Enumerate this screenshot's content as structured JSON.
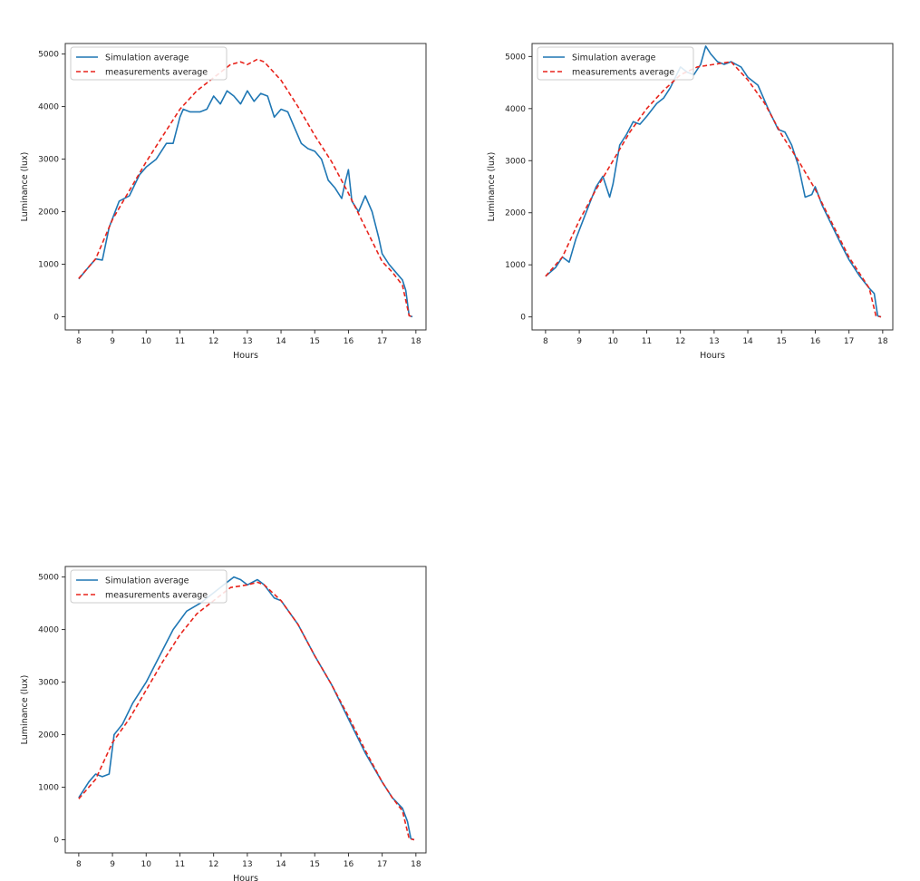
{
  "colors": {
    "simulation": "#1f77b4",
    "measurements": "#e8241c",
    "axes": "#333333"
  },
  "chart_data": [
    {
      "type": "line",
      "xlabel": "Hours",
      "ylabel": "Luminance (lux)",
      "xlim": [
        7.6,
        18.3
      ],
      "ylim": [
        -250,
        5200
      ],
      "xticks": [
        8,
        9,
        10,
        11,
        12,
        13,
        14,
        15,
        16,
        17,
        18
      ],
      "yticks": [
        0,
        1000,
        2000,
        3000,
        4000,
        5000
      ],
      "grid": false,
      "legend": "top-left",
      "series": [
        {
          "name": "Simulation average",
          "style": "solid",
          "x": [
            8,
            8.3,
            8.5,
            8.7,
            8.9,
            9.2,
            9.5,
            9.8,
            10,
            10.3,
            10.6,
            10.8,
            11,
            11.1,
            11.3,
            11.6,
            11.8,
            12,
            12.2,
            12.4,
            12.6,
            12.8,
            13,
            13.2,
            13.4,
            13.6,
            13.8,
            14,
            14.2,
            14.4,
            14.6,
            14.8,
            15,
            15.2,
            15.4,
            15.6,
            15.8,
            15.9,
            16,
            16.1,
            16.3,
            16.5,
            16.7,
            16.9,
            17,
            17.2,
            17.4,
            17.6,
            17.7,
            17.8,
            17.9
          ],
          "y": [
            720,
            950,
            1100,
            1080,
            1700,
            2200,
            2300,
            2700,
            2850,
            3000,
            3300,
            3300,
            3800,
            3950,
            3900,
            3900,
            3950,
            4200,
            4050,
            4300,
            4200,
            4050,
            4300,
            4100,
            4250,
            4200,
            3800,
            3950,
            3900,
            3600,
            3300,
            3200,
            3150,
            3000,
            2600,
            2450,
            2250,
            2550,
            2800,
            2200,
            2000,
            2300,
            2000,
            1500,
            1200,
            1000,
            850,
            700,
            500,
            20,
            0
          ]
        },
        {
          "name": "measurements average",
          "style": "dashed",
          "x": [
            8,
            8.5,
            9,
            9.5,
            10,
            10.5,
            11,
            11.5,
            12,
            12.5,
            12.8,
            13,
            13.3,
            13.5,
            14,
            14.5,
            15,
            15.5,
            16,
            16.5,
            17,
            17.3,
            17.6,
            17.8,
            17.9
          ],
          "y": [
            730,
            1100,
            1850,
            2400,
            2950,
            3450,
            3950,
            4300,
            4550,
            4800,
            4850,
            4800,
            4900,
            4850,
            4500,
            4000,
            3450,
            2950,
            2350,
            1700,
            1050,
            850,
            600,
            20,
            0
          ]
        }
      ]
    },
    {
      "type": "line",
      "xlabel": "Hours",
      "ylabel": "Luminance (lux)",
      "xlim": [
        7.6,
        18.3
      ],
      "ylim": [
        -250,
        5250
      ],
      "xticks": [
        8,
        9,
        10,
        11,
        12,
        13,
        14,
        15,
        16,
        17,
        18
      ],
      "yticks": [
        0,
        1000,
        2000,
        3000,
        4000,
        5000
      ],
      "grid": false,
      "legend": "top-left",
      "series": [
        {
          "name": "Simulation average",
          "style": "solid",
          "x": [
            8,
            8.3,
            8.5,
            8.7,
            8.9,
            9.2,
            9.5,
            9.7,
            9.9,
            10,
            10.2,
            10.4,
            10.6,
            10.8,
            11,
            11.3,
            11.5,
            11.7,
            12,
            12.2,
            12.4,
            12.6,
            12.75,
            12.9,
            13.1,
            13.3,
            13.5,
            13.8,
            14,
            14.3,
            14.6,
            14.9,
            15.1,
            15.3,
            15.5,
            15.7,
            15.9,
            16,
            16.2,
            16.5,
            16.8,
            17,
            17.3,
            17.6,
            17.75,
            17.85,
            17.95
          ],
          "y": [
            780,
            950,
            1150,
            1050,
            1500,
            2000,
            2500,
            2700,
            2300,
            2550,
            3300,
            3500,
            3750,
            3700,
            3850,
            4100,
            4200,
            4400,
            4800,
            4700,
            4650,
            4850,
            5200,
            5050,
            4900,
            4850,
            4900,
            4800,
            4600,
            4450,
            4000,
            3600,
            3550,
            3300,
            2900,
            2300,
            2350,
            2500,
            2150,
            1750,
            1350,
            1100,
            800,
            550,
            450,
            20,
            0
          ]
        },
        {
          "name": "measurements average",
          "style": "dashed",
          "x": [
            8,
            8.5,
            9,
            9.5,
            10,
            10.5,
            11,
            11.5,
            12,
            12.5,
            13,
            13.5,
            14,
            14.5,
            15,
            15.5,
            16,
            16.5,
            17,
            17.3,
            17.6,
            17.8,
            17.95
          ],
          "y": [
            780,
            1150,
            1850,
            2450,
            3000,
            3550,
            4000,
            4350,
            4650,
            4800,
            4850,
            4900,
            4550,
            4100,
            3500,
            3000,
            2450,
            1800,
            1150,
            850,
            550,
            20,
            0
          ]
        }
      ]
    },
    {
      "type": "line",
      "xlabel": "Hours",
      "ylabel": "Luminance (lux)",
      "xlim": [
        7.6,
        18.3
      ],
      "ylim": [
        -250,
        5200
      ],
      "xticks": [
        8,
        9,
        10,
        11,
        12,
        13,
        14,
        15,
        16,
        17,
        18
      ],
      "yticks": [
        0,
        1000,
        2000,
        3000,
        4000,
        5000
      ],
      "grid": false,
      "legend": "top-left",
      "series": [
        {
          "name": "Simulation average",
          "style": "solid",
          "x": [
            8,
            8.3,
            8.5,
            8.7,
            8.9,
            9.05,
            9.3,
            9.6,
            10,
            10.4,
            10.8,
            11.2,
            11.6,
            12,
            12.3,
            12.6,
            12.8,
            13,
            13.3,
            13.5,
            13.8,
            14,
            14.5,
            15,
            15.5,
            16,
            16.5,
            17,
            17.3,
            17.6,
            17.75,
            17.85,
            17.95
          ],
          "y": [
            800,
            1100,
            1250,
            1200,
            1250,
            2000,
            2200,
            2600,
            3000,
            3500,
            4000,
            4350,
            4500,
            4700,
            4850,
            5000,
            4950,
            4850,
            4950,
            4850,
            4600,
            4550,
            4100,
            3500,
            2950,
            2300,
            1650,
            1100,
            800,
            600,
            350,
            20,
            0
          ]
        },
        {
          "name": "measurements average",
          "style": "dashed",
          "x": [
            8,
            8.5,
            9,
            9.5,
            10,
            10.5,
            11,
            11.5,
            12,
            12.5,
            13,
            13.3,
            13.5,
            14,
            14.5,
            15,
            15.5,
            16,
            16.5,
            17,
            17.3,
            17.6,
            17.8,
            17.95
          ],
          "y": [
            780,
            1150,
            1850,
            2300,
            2850,
            3400,
            3900,
            4300,
            4550,
            4800,
            4850,
            4900,
            4850,
            4550,
            4100,
            3500,
            2950,
            2350,
            1700,
            1100,
            800,
            550,
            20,
            0
          ]
        }
      ]
    }
  ]
}
